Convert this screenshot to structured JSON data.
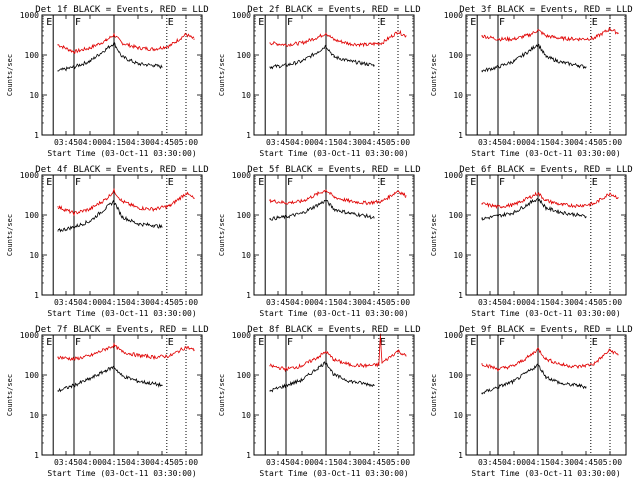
{
  "page": {
    "style": {
      "background": "#ffffff",
      "axis_color": "#000000",
      "events_color": "#000000",
      "lld_color": "#e00000"
    }
  },
  "chart_data": [
    {
      "type": "line",
      "title": "Det 1f BLACK = Events, RED = LLD",
      "ylabel": "Counts/sec",
      "xlabel": "Start Time (03-Oct-11 03:30:00)",
      "yscale": "log",
      "ylim": [
        1,
        1000
      ],
      "xlim": [
        "03:30",
        "05:10"
      ],
      "x_ticks": [
        "03:45",
        "04:00",
        "04:15",
        "04:30",
        "04:45",
        "05:00"
      ],
      "y_ticks": [
        "1",
        "10",
        "100",
        "1000"
      ],
      "flag_labels": [
        "E",
        "F",
        "E"
      ],
      "markers_solid": [
        "03:37",
        "03:50",
        "04:15"
      ],
      "markers_dotted": [
        "04:48",
        "05:00"
      ],
      "series": [
        {
          "color": "#e00000",
          "x": [
            "03:40",
            "03:50",
            "04:00",
            "04:10",
            "04:15",
            "04:20",
            "04:30",
            "04:40",
            "04:50",
            "05:00",
            "05:05"
          ],
          "values": [
            180,
            120,
            150,
            230,
            320,
            200,
            150,
            140,
            170,
            330,
            250
          ]
        },
        {
          "color": "#000000",
          "x": [
            "03:40",
            "03:50",
            "04:00",
            "04:10",
            "04:15",
            "04:20",
            "04:30",
            "04:40",
            "04:45"
          ],
          "values": [
            40,
            50,
            70,
            140,
            200,
            90,
            60,
            55,
            50
          ]
        }
      ]
    },
    {
      "type": "line",
      "title": "Det 2f BLACK = Events, RED = LLD",
      "ylabel": "Counts/sec",
      "xlabel": "Start Time (03-Oct-11 03:30:00)",
      "yscale": "log",
      "ylim": [
        1,
        1000
      ],
      "xlim": [
        "03:30",
        "05:10"
      ],
      "x_ticks": [
        "03:45",
        "04:00",
        "04:15",
        "04:30",
        "04:45",
        "05:00"
      ],
      "y_ticks": [
        "1",
        "10",
        "100",
        "1000"
      ],
      "flag_labels": [
        "E",
        "F",
        "E"
      ],
      "markers_solid": [
        "03:37",
        "03:50",
        "04:15"
      ],
      "markers_dotted": [
        "04:48",
        "05:00"
      ],
      "series": [
        {
          "color": "#e00000",
          "x": [
            "03:40",
            "03:50",
            "04:00",
            "04:10",
            "04:15",
            "04:20",
            "04:30",
            "04:40",
            "04:50",
            "05:00",
            "05:05"
          ],
          "values": [
            200,
            180,
            200,
            280,
            350,
            240,
            190,
            180,
            200,
            380,
            300
          ]
        },
        {
          "color": "#000000",
          "x": [
            "03:40",
            "03:50",
            "04:00",
            "04:10",
            "04:15",
            "04:20",
            "04:30",
            "04:40",
            "04:45"
          ],
          "values": [
            50,
            55,
            70,
            120,
            170,
            90,
            70,
            60,
            55
          ]
        }
      ]
    },
    {
      "type": "line",
      "title": "Det 3f BLACK = Events, RED = LLD",
      "ylabel": "Counts/sec",
      "xlabel": "Start Time (03-Oct-11 03:30:00)",
      "yscale": "log",
      "ylim": [
        1,
        1000
      ],
      "xlim": [
        "03:30",
        "05:10"
      ],
      "x_ticks": [
        "03:45",
        "04:00",
        "04:15",
        "04:30",
        "04:45",
        "05:00"
      ],
      "y_ticks": [
        "1",
        "10",
        "100",
        "1000"
      ],
      "flag_labels": [
        "E",
        "F",
        "E"
      ],
      "markers_solid": [
        "03:37",
        "03:50",
        "04:15"
      ],
      "markers_dotted": [
        "04:48",
        "05:00"
      ],
      "series": [
        {
          "color": "#e00000",
          "x": [
            "03:40",
            "03:50",
            "04:00",
            "04:10",
            "04:15",
            "04:20",
            "04:30",
            "04:40",
            "04:50",
            "05:00",
            "05:05"
          ],
          "values": [
            300,
            250,
            250,
            320,
            420,
            300,
            260,
            250,
            260,
            450,
            350
          ]
        },
        {
          "color": "#000000",
          "x": [
            "03:40",
            "03:50",
            "04:00",
            "04:10",
            "04:15",
            "04:20",
            "04:30",
            "04:40",
            "04:45"
          ],
          "values": [
            40,
            50,
            70,
            130,
            190,
            90,
            65,
            55,
            50
          ]
        }
      ]
    },
    {
      "type": "line",
      "title": "Det 4f BLACK = Events, RED = LLD",
      "ylabel": "Counts/sec",
      "xlabel": "Start Time (03-Oct-11 03:30:00)",
      "yscale": "log",
      "ylim": [
        1,
        1000
      ],
      "xlim": [
        "03:30",
        "05:10"
      ],
      "x_ticks": [
        "03:45",
        "04:00",
        "04:15",
        "04:30",
        "04:45",
        "05:00"
      ],
      "y_ticks": [
        "1",
        "10",
        "100",
        "1000"
      ],
      "flag_labels": [
        "E",
        "F",
        "E"
      ],
      "markers_solid": [
        "03:37",
        "03:50",
        "04:15"
      ],
      "markers_dotted": [
        "04:48",
        "05:00"
      ],
      "series": [
        {
          "color": "#e00000",
          "x": [
            "03:40",
            "03:50",
            "04:00",
            "04:10",
            "04:15",
            "04:20",
            "04:30",
            "04:40",
            "04:50",
            "05:00",
            "05:05"
          ],
          "values": [
            160,
            110,
            140,
            250,
            400,
            220,
            150,
            140,
            170,
            350,
            260
          ]
        },
        {
          "color": "#000000",
          "x": [
            "03:40",
            "03:50",
            "04:00",
            "04:10",
            "04:15",
            "04:20",
            "04:30",
            "04:40",
            "04:45"
          ],
          "values": [
            40,
            50,
            70,
            150,
            220,
            90,
            60,
            55,
            50
          ]
        }
      ]
    },
    {
      "type": "line",
      "title": "Det 5f BLACK = Events, RED = LLD",
      "ylabel": "Counts/sec",
      "xlabel": "Start Time (03-Oct-11 03:30:00)",
      "yscale": "log",
      "ylim": [
        1,
        1000
      ],
      "xlim": [
        "03:30",
        "05:10"
      ],
      "x_ticks": [
        "03:45",
        "04:00",
        "04:15",
        "04:30",
        "04:45",
        "05:00"
      ],
      "y_ticks": [
        "1",
        "10",
        "100",
        "1000"
      ],
      "flag_labels": [
        "E",
        "F",
        "E"
      ],
      "markers_solid": [
        "03:37",
        "03:50",
        "04:15"
      ],
      "markers_dotted": [
        "04:48",
        "05:00"
      ],
      "series": [
        {
          "color": "#e00000",
          "x": [
            "03:40",
            "03:50",
            "04:00",
            "04:10",
            "04:15",
            "04:20",
            "04:30",
            "04:40",
            "04:50",
            "05:00",
            "05:05"
          ],
          "values": [
            230,
            200,
            220,
            340,
            420,
            280,
            220,
            200,
            220,
            400,
            300
          ]
        },
        {
          "color": "#000000",
          "x": [
            "03:40",
            "03:50",
            "04:00",
            "04:10",
            "04:15",
            "04:20",
            "04:30",
            "04:40",
            "04:45"
          ],
          "values": [
            80,
            90,
            110,
            180,
            230,
            140,
            110,
            95,
            85
          ]
        }
      ]
    },
    {
      "type": "line",
      "title": "Det 6f BLACK = Events, RED = LLD",
      "ylabel": "Counts/sec",
      "xlabel": "Start Time (03-Oct-11 03:30:00)",
      "yscale": "log",
      "ylim": [
        1,
        1000
      ],
      "xlim": [
        "03:30",
        "05:10"
      ],
      "x_ticks": [
        "03:45",
        "04:00",
        "04:15",
        "04:30",
        "04:45",
        "05:00"
      ],
      "y_ticks": [
        "1",
        "10",
        "100",
        "1000"
      ],
      "flag_labels": [
        "E",
        "F",
        "E"
      ],
      "markers_solid": [
        "03:37",
        "03:50",
        "04:15"
      ],
      "markers_dotted": [
        "04:48",
        "05:00"
      ],
      "series": [
        {
          "color": "#e00000",
          "x": [
            "03:40",
            "03:50",
            "04:00",
            "04:10",
            "04:15",
            "04:20",
            "04:30",
            "04:40",
            "04:50",
            "05:00",
            "05:05"
          ],
          "values": [
            190,
            160,
            180,
            280,
            350,
            230,
            180,
            170,
            190,
            350,
            270
          ]
        },
        {
          "color": "#000000",
          "x": [
            "03:40",
            "03:50",
            "04:00",
            "04:10",
            "04:15",
            "04:20",
            "04:30",
            "04:40",
            "04:45"
          ],
          "values": [
            80,
            95,
            115,
            200,
            260,
            150,
            115,
            100,
            90
          ]
        }
      ]
    },
    {
      "type": "line",
      "title": "Det 7f BLACK = Events, RED = LLD",
      "ylabel": "Counts/sec",
      "xlabel": "Start Time (03-Oct-11 03:30:00)",
      "yscale": "log",
      "ylim": [
        1,
        1000
      ],
      "xlim": [
        "03:30",
        "05:10"
      ],
      "x_ticks": [
        "03:45",
        "04:00",
        "04:15",
        "04:30",
        "04:45",
        "05:00"
      ],
      "y_ticks": [
        "1",
        "10",
        "100",
        "1000"
      ],
      "flag_labels": [
        "E",
        "F",
        "E"
      ],
      "markers_solid": [
        "03:37",
        "03:50",
        "04:15"
      ],
      "markers_dotted": [
        "04:48",
        "05:00"
      ],
      "series": [
        {
          "color": "#e00000",
          "x": [
            "03:40",
            "03:50",
            "04:00",
            "04:10",
            "04:15",
            "04:20",
            "04:30",
            "04:40",
            "04:50",
            "05:00",
            "05:05"
          ],
          "values": [
            280,
            250,
            300,
            450,
            550,
            380,
            310,
            280,
            300,
            500,
            420
          ]
        },
        {
          "color": "#000000",
          "x": [
            "03:40",
            "03:50",
            "04:00",
            "04:10",
            "04:15",
            "04:20",
            "04:30",
            "04:40",
            "04:45"
          ],
          "values": [
            40,
            55,
            80,
            130,
            160,
            95,
            70,
            60,
            55
          ]
        }
      ]
    },
    {
      "type": "line",
      "title": "Det 8f BLACK = Events, RED = LLD",
      "ylabel": "Counts/sec",
      "xlabel": "Start Time (03-Oct-11 03:30:00)",
      "yscale": "log",
      "ylim": [
        1,
        1000
      ],
      "xlim": [
        "03:30",
        "05:10"
      ],
      "x_ticks": [
        "03:45",
        "04:00",
        "04:15",
        "04:30",
        "04:45",
        "05:00"
      ],
      "y_ticks": [
        "1",
        "10",
        "100",
        "1000"
      ],
      "flag_labels": [
        "E",
        "F",
        "E"
      ],
      "markers_solid": [
        "03:37",
        "03:50",
        "04:15"
      ],
      "markers_dotted": [
        "04:48",
        "05:00"
      ],
      "series": [
        {
          "color": "#e00000",
          "x": [
            "03:40",
            "03:50",
            "04:00",
            "04:10",
            "04:15",
            "04:20",
            "04:30",
            "04:40",
            "04:48",
            "04:49",
            "04:50",
            "05:00",
            "05:05"
          ],
          "values": [
            170,
            140,
            170,
            280,
            380,
            240,
            180,
            170,
            180,
            1000,
            200,
            400,
            300
          ]
        },
        {
          "color": "#000000",
          "x": [
            "03:40",
            "03:50",
            "04:00",
            "04:10",
            "04:15",
            "04:20",
            "04:30",
            "04:40",
            "04:45"
          ],
          "values": [
            40,
            55,
            75,
            150,
            210,
            100,
            70,
            60,
            55
          ]
        }
      ]
    },
    {
      "type": "line",
      "title": "Det 9f BLACK = Events, RED = LLD",
      "ylabel": "Counts/sec",
      "xlabel": "Start Time (03-Oct-11 03:30:00)",
      "yscale": "log",
      "ylim": [
        1,
        1000
      ],
      "xlim": [
        "03:30",
        "05:10"
      ],
      "x_ticks": [
        "03:45",
        "04:00",
        "04:15",
        "04:30",
        "04:45",
        "05:00"
      ],
      "y_ticks": [
        "1",
        "10",
        "100",
        "1000"
      ],
      "flag_labels": [
        "E",
        "F",
        "E"
      ],
      "markers_solid": [
        "03:37",
        "03:50",
        "04:15"
      ],
      "markers_dotted": [
        "04:48",
        "05:00"
      ],
      "series": [
        {
          "color": "#e00000",
          "x": [
            "03:40",
            "03:50",
            "04:00",
            "04:10",
            "04:15",
            "04:20",
            "04:30",
            "04:40",
            "04:50",
            "05:00",
            "05:05"
          ],
          "values": [
            190,
            140,
            170,
            300,
            450,
            250,
            180,
            160,
            190,
            420,
            320
          ]
        },
        {
          "color": "#000000",
          "x": [
            "03:40",
            "03:50",
            "04:00",
            "04:10",
            "04:15",
            "04:20",
            "04:30",
            "04:40",
            "04:45"
          ],
          "values": [
            35,
            50,
            70,
            130,
            180,
            90,
            60,
            55,
            50
          ]
        }
      ]
    }
  ]
}
